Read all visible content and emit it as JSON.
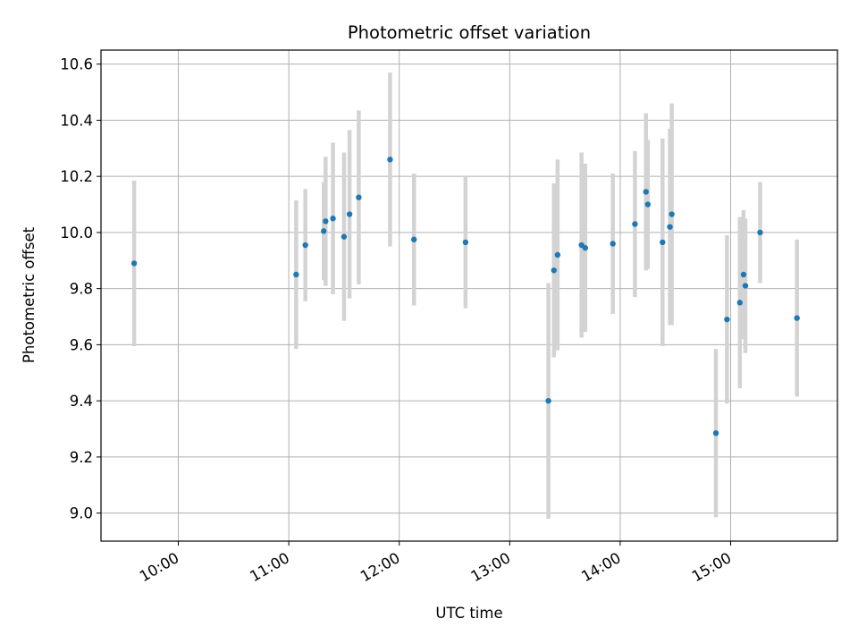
{
  "chart_data": {
    "type": "scatter",
    "title": "Photometric offset variation",
    "xlabel": "UTC time",
    "ylabel": "Photometric offset",
    "x_axis_type": "time",
    "xlim": [
      "09:18",
      "15:58"
    ],
    "ylim": [
      8.9,
      10.65
    ],
    "grid": true,
    "x_ticks": [
      "10:00",
      "11:00",
      "12:00",
      "13:00",
      "14:00",
      "15:00"
    ],
    "y_ticks": [
      "9.0",
      "9.2",
      "9.4",
      "9.6",
      "9.8",
      "10.0",
      "10.2",
      "10.4",
      "10.6"
    ],
    "marker_color": "#1f77b4",
    "errorbar_color": "#d3d3d3",
    "points": [
      {
        "x": "09:36",
        "y": 9.89,
        "err": 0.295
      },
      {
        "x": "11:04",
        "y": 9.85,
        "err": 0.265
      },
      {
        "x": "11:09",
        "y": 9.955,
        "err": 0.2
      },
      {
        "x": "11:19",
        "y": 10.005,
        "err": 0.175
      },
      {
        "x": "11:20",
        "y": 10.04,
        "err": 0.23
      },
      {
        "x": "11:24",
        "y": 10.05,
        "err": 0.27
      },
      {
        "x": "11:30",
        "y": 9.985,
        "err": 0.3
      },
      {
        "x": "11:33",
        "y": 10.065,
        "err": 0.3
      },
      {
        "x": "11:38",
        "y": 10.125,
        "err": 0.31
      },
      {
        "x": "11:55",
        "y": 10.26,
        "err": 0.31
      },
      {
        "x": "12:08",
        "y": 9.975,
        "err": 0.235
      },
      {
        "x": "12:36",
        "y": 9.965,
        "err": 0.235
      },
      {
        "x": "13:21",
        "y": 9.4,
        "err": 0.42
      },
      {
        "x": "13:24",
        "y": 9.865,
        "err": 0.31
      },
      {
        "x": "13:26",
        "y": 9.92,
        "err": 0.34
      },
      {
        "x": "13:39",
        "y": 9.955,
        "err": 0.33
      },
      {
        "x": "13:41",
        "y": 9.945,
        "err": 0.3
      },
      {
        "x": "13:56",
        "y": 9.96,
        "err": 0.25
      },
      {
        "x": "14:08",
        "y": 10.03,
        "err": 0.26
      },
      {
        "x": "14:14",
        "y": 10.145,
        "err": 0.28
      },
      {
        "x": "14:15",
        "y": 10.1,
        "err": 0.23
      },
      {
        "x": "14:23",
        "y": 9.965,
        "err": 0.37
      },
      {
        "x": "14:27",
        "y": 10.02,
        "err": 0.35
      },
      {
        "x": "14:28",
        "y": 10.065,
        "err": 0.395
      },
      {
        "x": "14:52",
        "y": 9.285,
        "err": 0.3
      },
      {
        "x": "14:58",
        "y": 9.69,
        "err": 0.3
      },
      {
        "x": "15:05",
        "y": 9.75,
        "err": 0.305
      },
      {
        "x": "15:07",
        "y": 9.85,
        "err": 0.23
      },
      {
        "x": "15:08",
        "y": 9.81,
        "err": 0.24
      },
      {
        "x": "15:16",
        "y": 10.0,
        "err": 0.18
      },
      {
        "x": "15:36",
        "y": 9.695,
        "err": 0.28
      }
    ]
  }
}
